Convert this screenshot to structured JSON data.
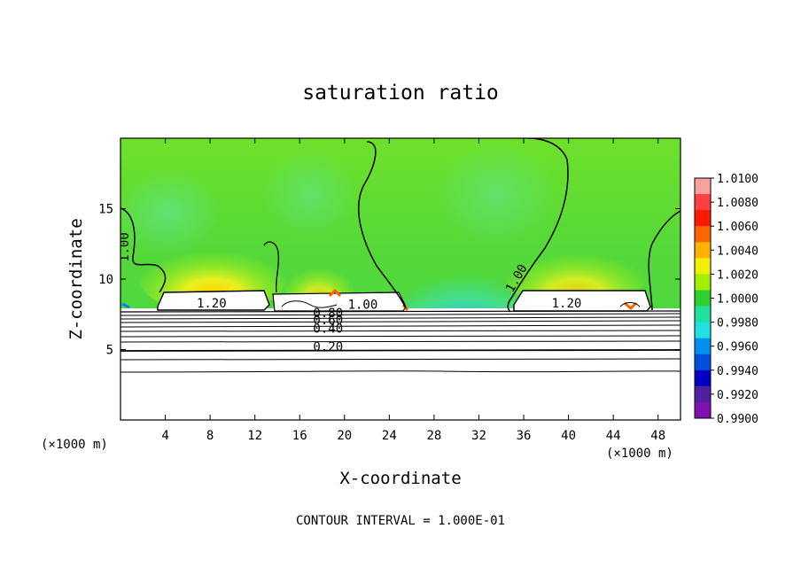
{
  "chart_data": {
    "type": "heatmap",
    "title": "saturation ratio",
    "xlabel": "X-coordinate",
    "ylabel": "Z-coordinate",
    "x_unit": "(×1000 m)",
    "x_unit_right": "(×1000 m)",
    "xlim": [
      0,
      50
    ],
    "ylim": [
      0,
      20
    ],
    "x_ticks": [
      "4",
      "8",
      "12",
      "16",
      "20",
      "24",
      "28",
      "32",
      "36",
      "40",
      "44",
      "48"
    ],
    "y_ticks": [
      "5",
      "10",
      "15"
    ],
    "x_tick_values": [
      4,
      8,
      12,
      16,
      20,
      24,
      28,
      32,
      36,
      40,
      44,
      48
    ],
    "y_tick_values": [
      5,
      10,
      15
    ],
    "footer": "CONTOUR INTERVAL = 1.000E-01",
    "colorbar": {
      "labels": [
        "1.0100",
        "1.0080",
        "1.0060",
        "1.0040",
        "1.0020",
        "1.0000",
        "0.9980",
        "0.9960",
        "0.9940",
        "0.9920",
        "0.9900"
      ],
      "colors": [
        "#f7a0a0",
        "#ff4040",
        "#ff1a00",
        "#ff6600",
        "#ffb000",
        "#f0f000",
        "#a0f000",
        "#30d030",
        "#20e0a0",
        "#20e0e0",
        "#0090f0",
        "#0050e0",
        "#0000c0",
        "#5020a0",
        "#8010b0"
      ]
    },
    "contour_labels": [
      {
        "text": "1.00",
        "x": 0.7,
        "z": 11.2,
        "rotate": -90
      },
      {
        "text": "1.20",
        "x": 6.8,
        "z": 8.0
      },
      {
        "text": "0.80",
        "x": 17.2,
        "z": 7.3
      },
      {
        "text": "0.60",
        "x": 17.2,
        "z": 6.8
      },
      {
        "text": "0.40",
        "x": 17.2,
        "z": 6.2
      },
      {
        "text": "0.20",
        "x": 17.2,
        "z": 4.9
      },
      {
        "text": "1.00",
        "x": 20.3,
        "z": 7.9
      },
      {
        "text": "1.00",
        "x": 35.0,
        "z": 9.0,
        "rotate": -60
      },
      {
        "text": "1.20",
        "x": 38.5,
        "z": 8.0
      }
    ]
  }
}
